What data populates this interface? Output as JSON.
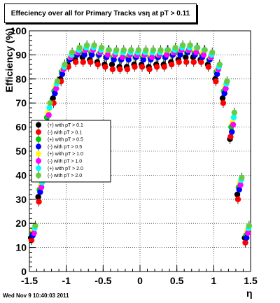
{
  "title": "Effeciency over all for Primary Tracks vsη at pT > 0.11",
  "footer": "Wed Nov  9 10:40:03 2011",
  "chart_data": {
    "type": "scatter",
    "title": "Effeciency over all for Primary Tracks vsη at pT > 0.11",
    "xlabel": "η",
    "ylabel": "Efficiency (%)",
    "xlim": [
      -1.5,
      1.5
    ],
    "ylim": [
      0,
      100
    ],
    "x_ticks": [
      "-1.5",
      "-1",
      "-0.5",
      "0",
      "0.5",
      "1",
      "1.5"
    ],
    "y_ticks": [
      "0",
      "10",
      "20",
      "30",
      "40",
      "50",
      "60",
      "70",
      "80",
      "90",
      "100"
    ],
    "x_tick_values": [
      -1.5,
      -1,
      -0.5,
      0,
      0.5,
      1,
      1.5
    ],
    "y_tick_values": [
      0,
      10,
      20,
      30,
      40,
      50,
      60,
      70,
      80,
      90,
      100
    ],
    "grid": true,
    "legend_position": "left-middle",
    "x": [
      -1.45,
      -1.35,
      -1.25,
      -1.15,
      -1.05,
      -0.95,
      -0.85,
      -0.75,
      -0.65,
      -0.55,
      -0.45,
      -0.35,
      -0.25,
      -0.15,
      -0.05,
      0.05,
      0.15,
      0.25,
      0.35,
      0.45,
      0.55,
      0.65,
      0.75,
      0.85,
      0.95,
      1.05,
      1.15,
      1.25,
      1.35,
      1.45
    ],
    "series": [
      {
        "name": "(+) with pT > 0.1",
        "color": "#000000",
        "values": [
          14,
          31,
          60,
          72,
          80,
          86,
          88,
          89,
          88,
          87,
          86,
          86,
          85,
          85,
          86,
          86,
          85,
          86,
          86,
          87,
          88,
          89,
          89,
          88,
          86,
          80,
          72,
          55,
          32,
          14
        ]
      },
      {
        "name": "(-) with pT > 0.1",
        "color": "#ff0000",
        "values": [
          13,
          29,
          58,
          70,
          79,
          85,
          87,
          87,
          87,
          86,
          85,
          84,
          84,
          84,
          85,
          85,
          84,
          85,
          85,
          86,
          87,
          87,
          87,
          87,
          85,
          79,
          70,
          56,
          30,
          12
        ]
      },
      {
        "name": "(+) with pT > 0.5",
        "color": "#00cc00",
        "values": [
          16,
          34,
          64,
          75,
          83,
          88,
          90,
          91,
          91,
          90,
          89,
          89,
          88,
          89,
          89,
          89,
          89,
          89,
          89,
          90,
          91,
          91,
          91,
          90,
          88,
          83,
          75,
          60,
          35,
          15
        ]
      },
      {
        "name": "(-) with pT > 0.5",
        "color": "#0000ff",
        "values": [
          15,
          33,
          62,
          74,
          82,
          88,
          90,
          90,
          90,
          90,
          89,
          88,
          88,
          88,
          89,
          88,
          88,
          89,
          89,
          90,
          90,
          91,
          90,
          89,
          88,
          82,
          74,
          58,
          34,
          14
        ]
      },
      {
        "name": "(+) with pT > 1.0",
        "color": "#ffff00",
        "values": [
          17,
          36,
          66,
          77,
          84,
          89,
          91,
          92,
          92,
          91,
          91,
          90,
          90,
          90,
          90,
          90,
          90,
          90,
          91,
          91,
          92,
          92,
          92,
          91,
          89,
          84,
          77,
          62,
          37,
          17
        ]
      },
      {
        "name": "(-) with pT > 1.0",
        "color": "#ff00ff",
        "values": [
          16,
          35,
          65,
          76,
          84,
          89,
          91,
          92,
          92,
          91,
          90,
          90,
          89,
          90,
          90,
          90,
          89,
          90,
          90,
          91,
          92,
          92,
          91,
          90,
          89,
          84,
          76,
          61,
          36,
          16
        ]
      },
      {
        "name": "(+) with pT > 2.0",
        "color": "#00ffff",
        "values": [
          18,
          37,
          68,
          78,
          85,
          90,
          92,
          93,
          93,
          92,
          92,
          91,
          91,
          91,
          91,
          91,
          91,
          91,
          92,
          92,
          93,
          93,
          93,
          92,
          90,
          85,
          78,
          64,
          38,
          18
        ]
      },
      {
        "name": "(-) with pT > 2.0",
        "color": "#66cc44",
        "values": [
          19,
          38,
          70,
          79,
          86,
          91,
          93,
          94,
          94,
          93,
          92,
          92,
          92,
          92,
          92,
          92,
          92,
          92,
          92,
          93,
          94,
          94,
          93,
          92,
          91,
          86,
          79,
          66,
          39,
          19
        ]
      }
    ]
  }
}
